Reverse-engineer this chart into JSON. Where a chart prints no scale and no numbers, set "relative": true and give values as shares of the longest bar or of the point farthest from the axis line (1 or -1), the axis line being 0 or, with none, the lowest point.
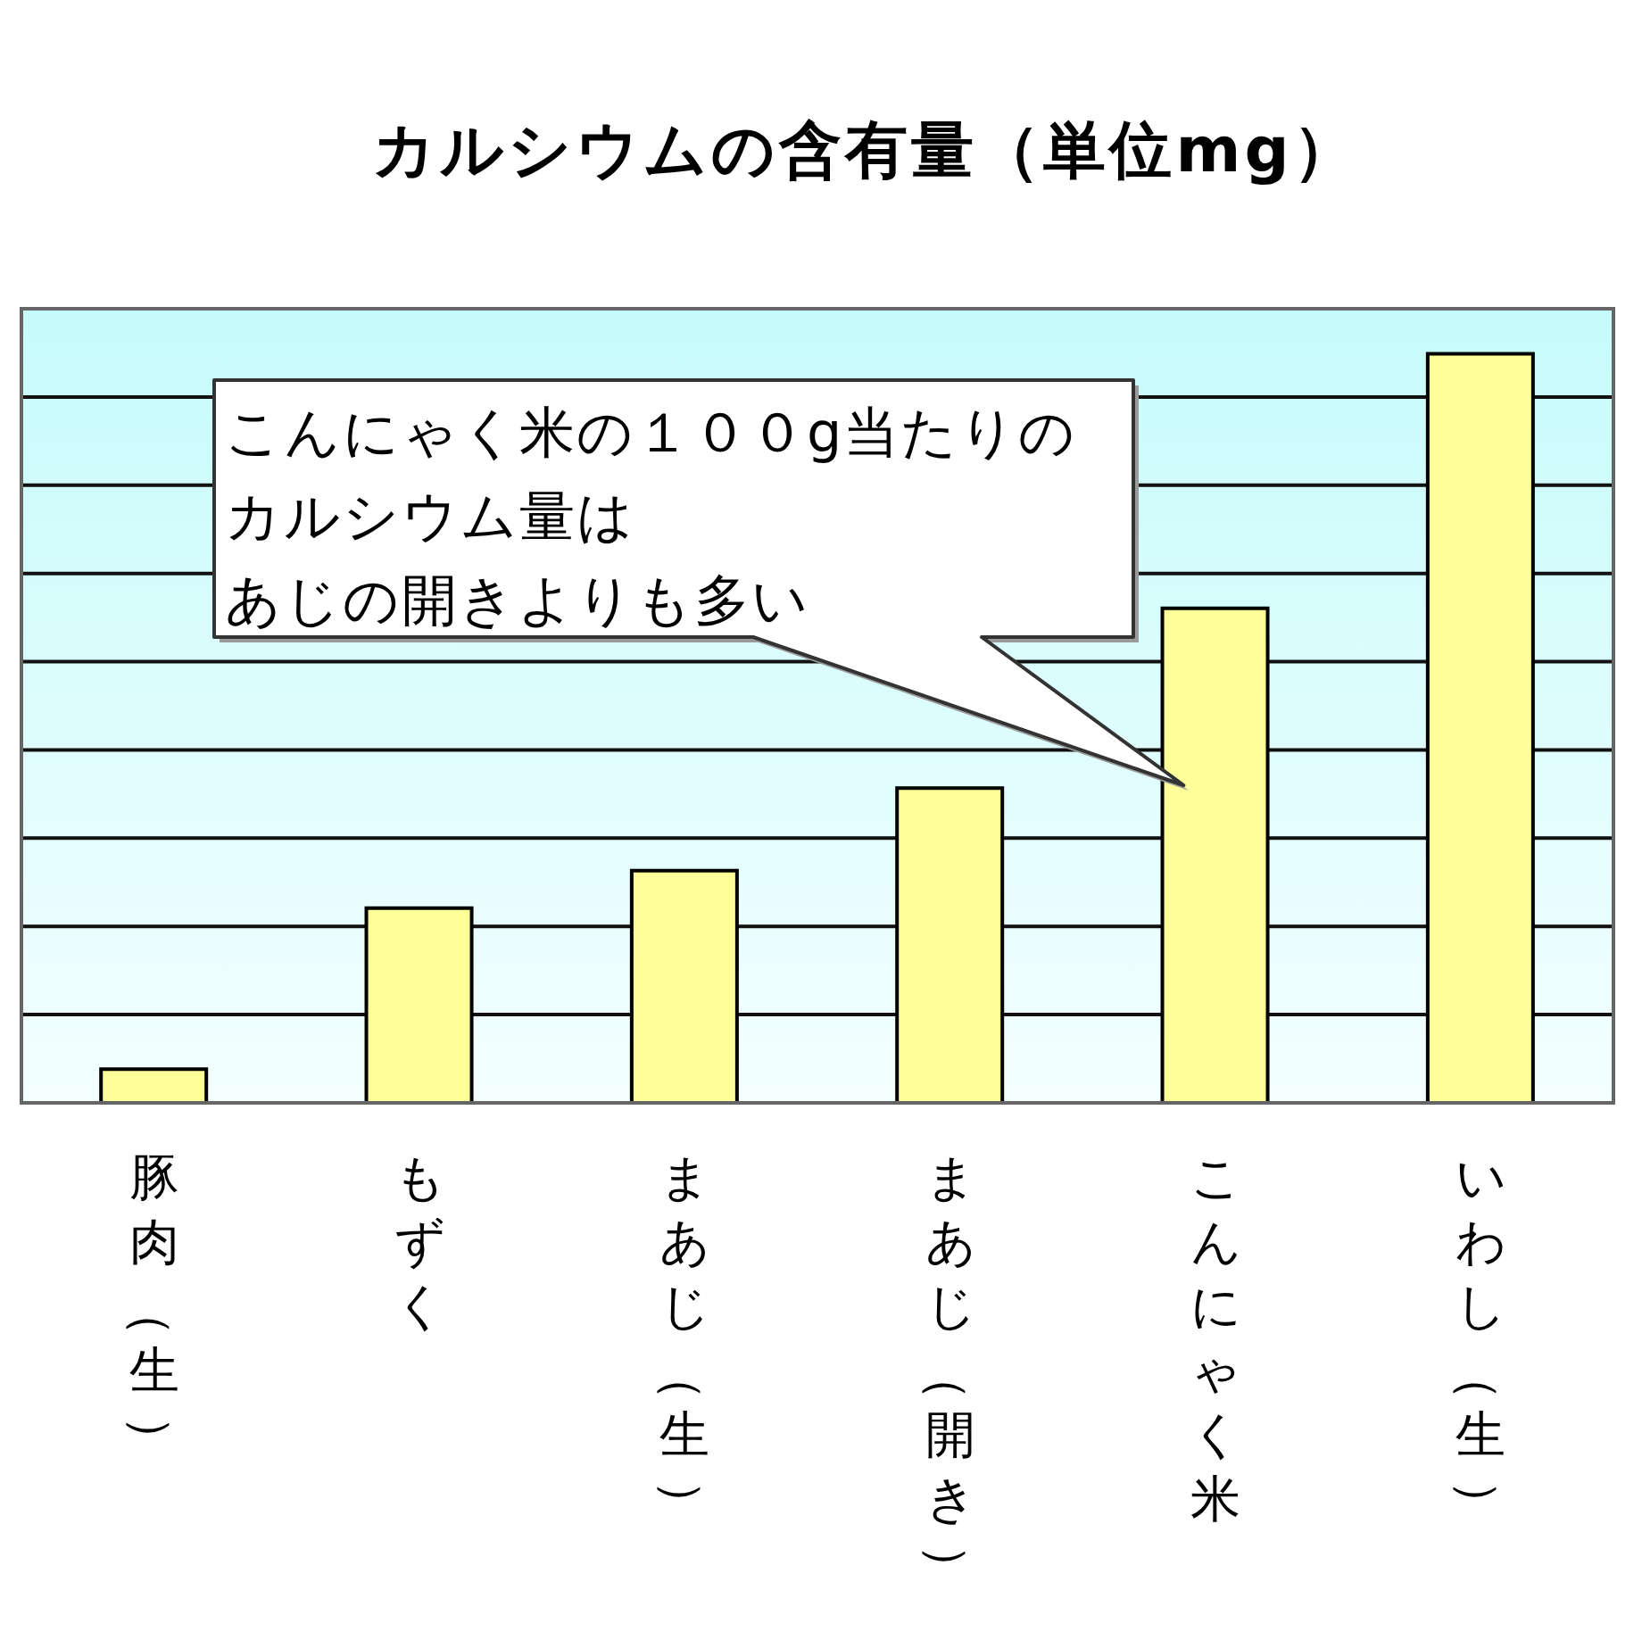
{
  "chart_data": {
    "type": "bar",
    "title": "カルシウムの含有量（単位mg）",
    "categories": [
      "豚肉（生）",
      "もずく",
      "まあじ（生）",
      "まあじ（開き）",
      "こんにゃく米",
      "いわし（生）"
    ],
    "values": [
      0.045,
      0.26,
      0.31,
      0.42,
      0.66,
      1
    ],
    "color": "#ffff99",
    "relative": true,
    "grid": "y",
    "annotations": [
      "こんにゃく米の１００g当たりの",
      "カルシウム量は",
      "あじの開きよりも多い"
    ]
  }
}
